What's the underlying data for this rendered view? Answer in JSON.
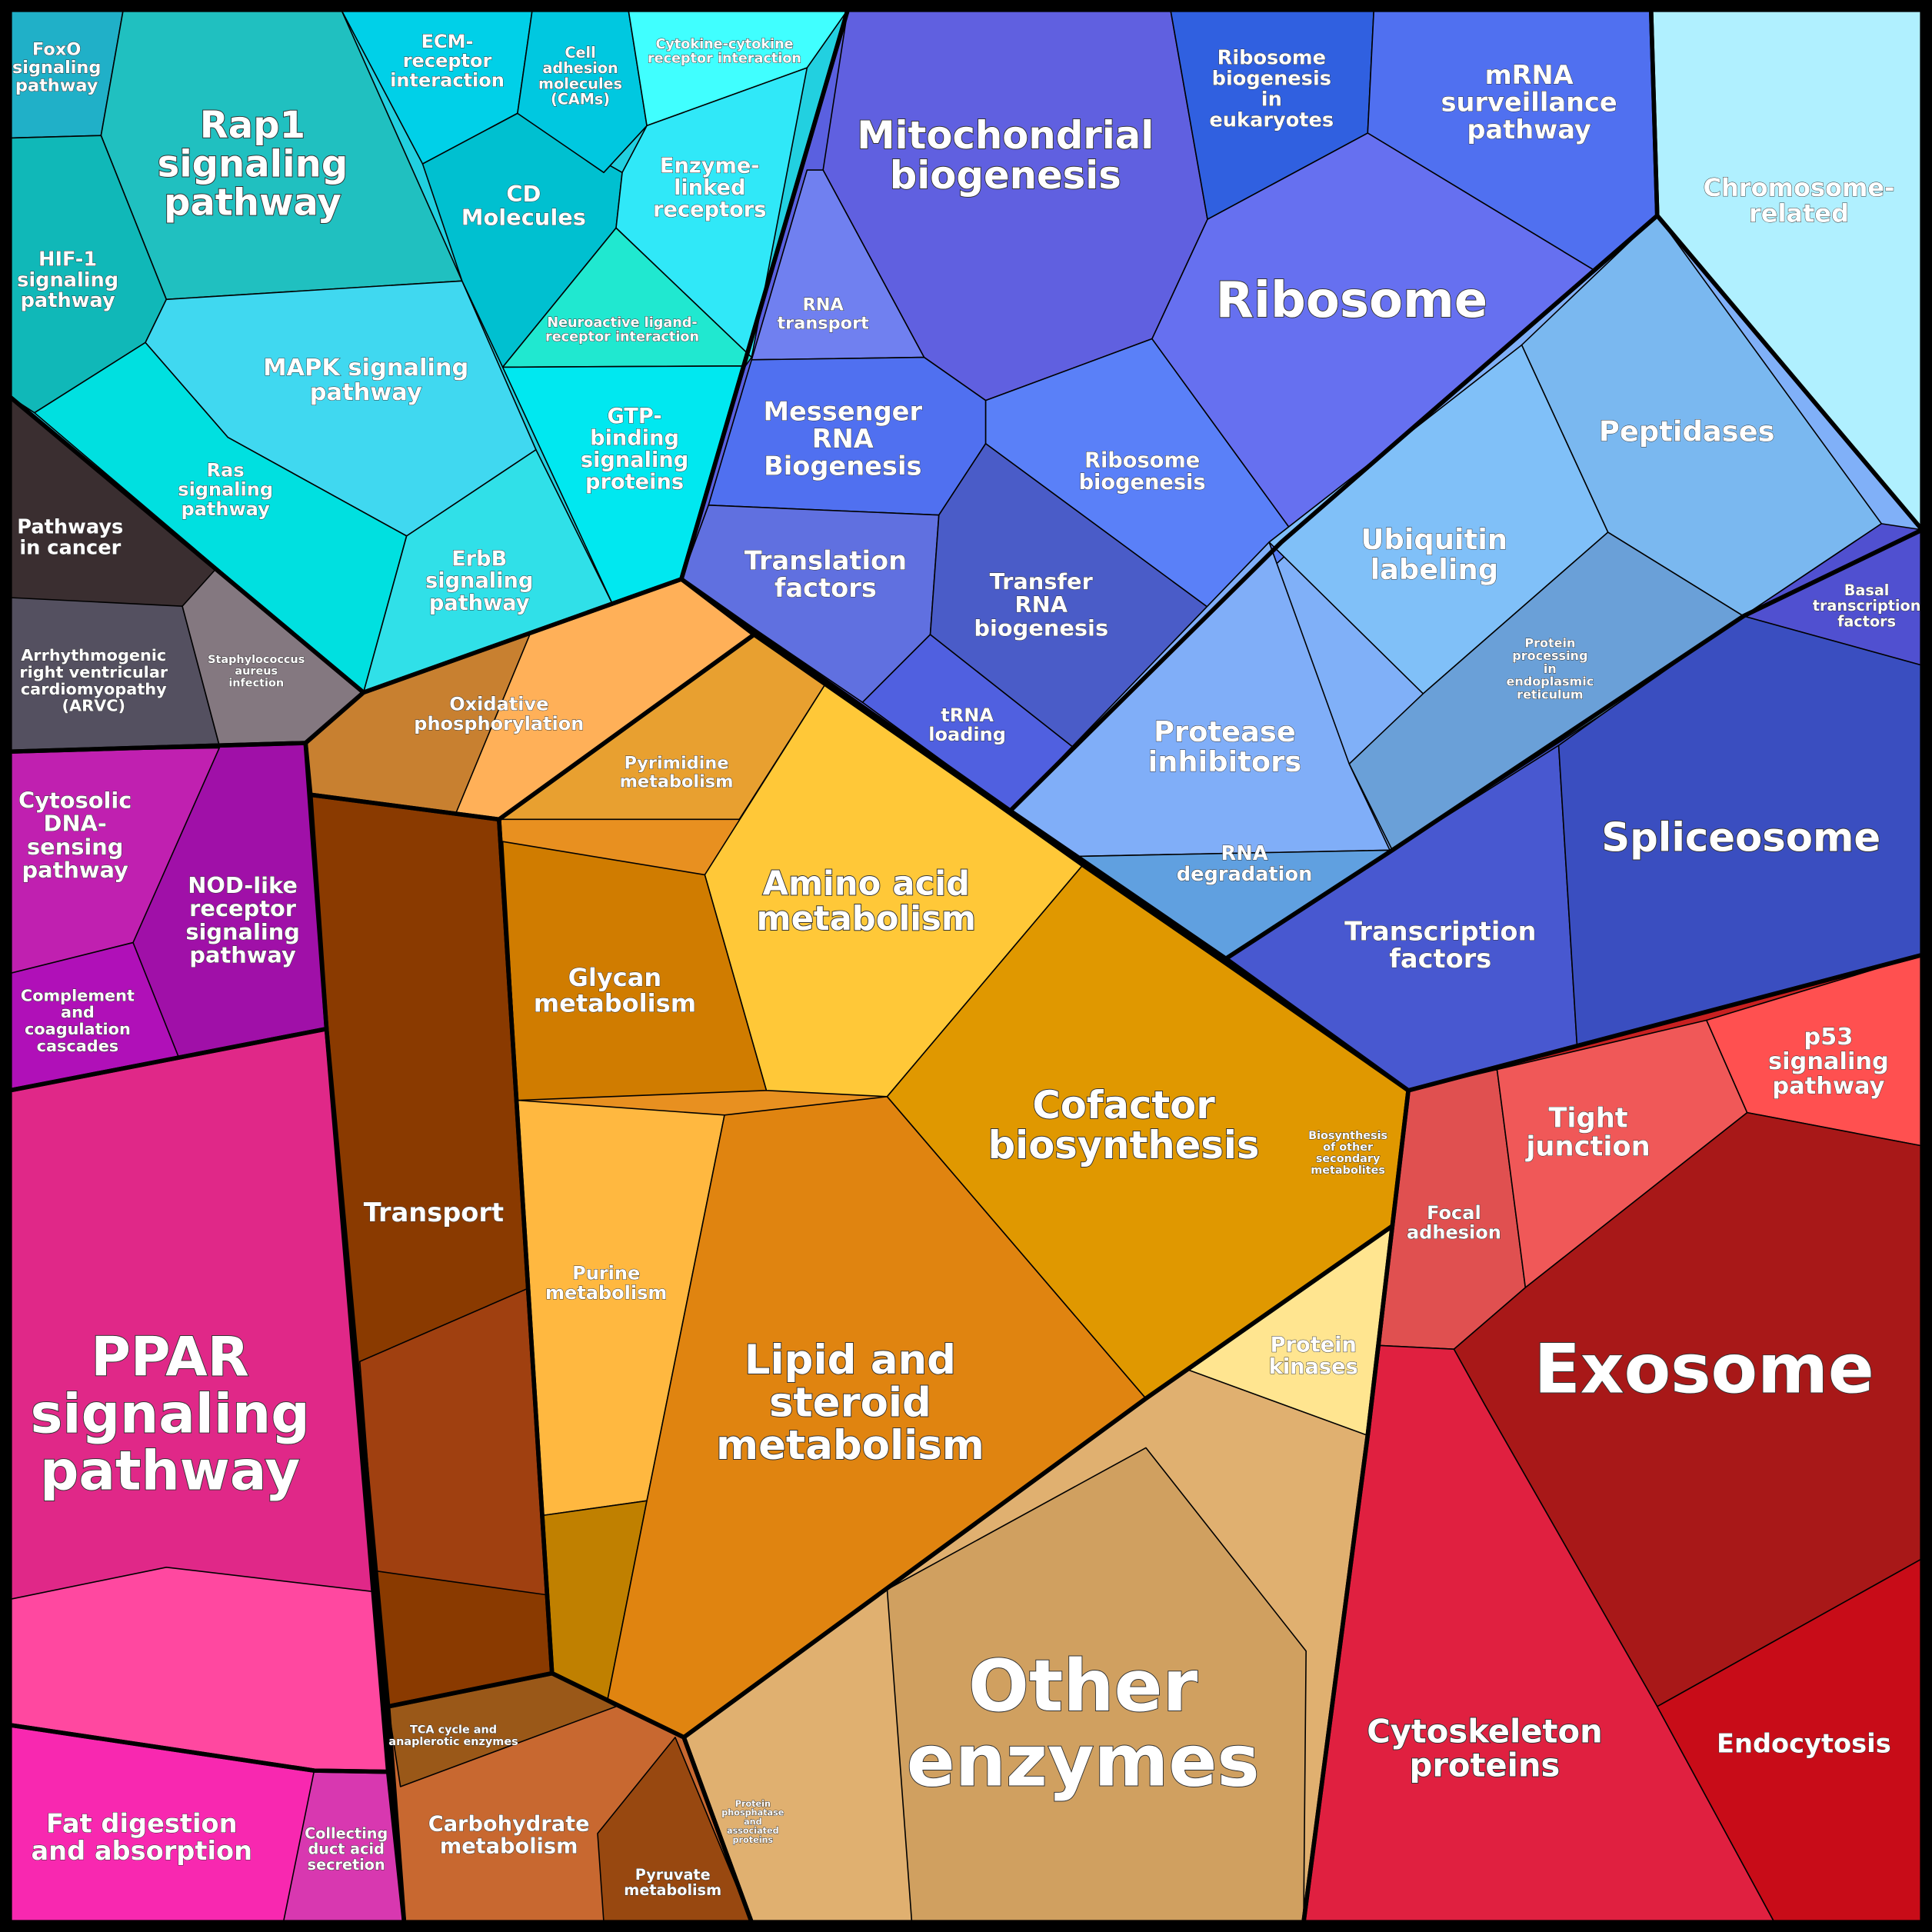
{
  "labels": [
    "FoxO\nsignaling\npathway",
    "Rap1\nsignaling\npathway",
    "ECM-\nreceptor\ninteraction",
    "Cell\nadhesion\nmolecules\n(CAMs)",
    "Cytokine-cytokine\nreceptor interaction",
    "HIF-1\nsignaling\npathway",
    "CD\nMolecules",
    "Enzyme-\nlinked\nreceptors",
    "MAPK signaling\npathway",
    "Neuroactive ligand-\nreceptor interaction",
    "GTP-\nbinding\nsignaling\nproteins",
    "Ras\nsignaling\npathway",
    "ErbB\nsignaling\npathway",
    "Pathways\nin cancer",
    "Arrhythmogenic\nright ventricular\ncardiomyopathy\n(ARVC)",
    "Staphylococcus\naureus\ninfection",
    "Cytosolic\nDNA-\nsensing\npathway",
    "NOD-like\nreceptor\nsignaling\npathway",
    "Complement\nand\ncoagulation\ncascades",
    "PPAR\nsignaling\npathway",
    "Fat digestion\nand absorption",
    "Collecting\nduct acid\nsecretion",
    "Mitochondrial\nbiogenesis",
    "Ribosome\nbiogenesis\nin\neukaryotes",
    "mRNA\nsurveillance\npathway",
    "Chromosome-\nrelated",
    "Ribosome",
    "RNA\ntransport",
    "Messenger\nRNA\nBiogenesis",
    "Peptidases",
    "Ribosome\nbiogenesis",
    "Ubiquitin\nlabeling",
    "Translation\nfactors",
    "Transfer\nRNA\nbiogenesis",
    "Basal\ntranscription\nfactors",
    "Protein\nprocessing\nin\nendoplasmic\nreticulum",
    "tRNA\nloading",
    "Protease\ninhibitors",
    "Spliceosome",
    "RNA\ndegradation",
    "Transcription\nfactors",
    "Oxidative\nphosphorylation",
    "Pyrimidine\nmetabolism",
    "Amino acid\nmetabolism",
    "Glycan\nmetabolism",
    "Cofactor\nbiosynthesis",
    "Biosynthesis\nof other\nsecondary\nmetabolites",
    "Transport",
    "Purine\nmetabolism",
    "Focal\nadhesion",
    "Tight\njunction",
    "p53\nsignaling\npathway",
    "Protein\nkinases",
    "Lipid and\nsteroid\nmetabolism",
    "Exosome",
    "Other\nenzymes",
    "TCA cycle and\nanaplerotic enzymes",
    "Carbohydrate\nmetabolism",
    "Protein\nphosphatase\nand\nassociated\nproteins",
    "Pyruvate\nmetabolism",
    "Cytoskeleton\nproteins",
    "Endocytosis"
  ]
}
